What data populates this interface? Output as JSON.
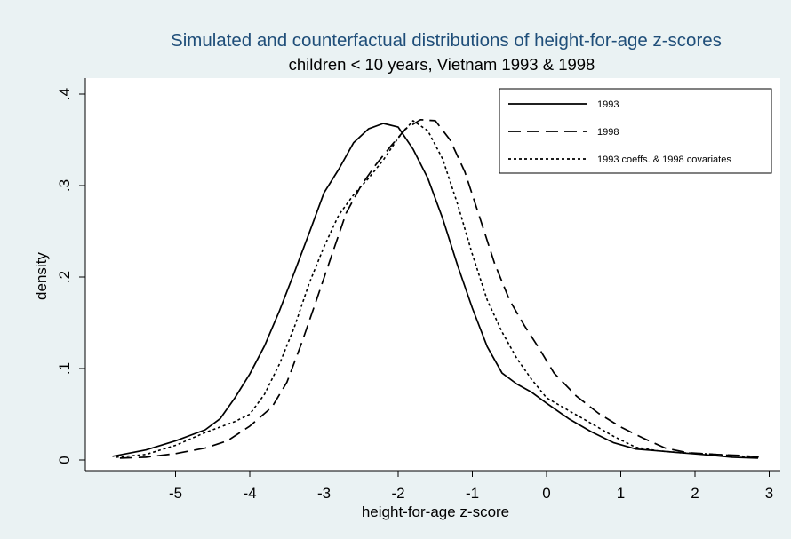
{
  "chart_data": {
    "type": "line",
    "title": "Simulated and counterfactual distributions of height-for-age z-scores",
    "subtitle": "children < 10 years, Vietnam 1993 & 1998",
    "xlabel": "height-for-age z-score",
    "ylabel": "density",
    "xlim": [
      -5.9,
      3.1
    ],
    "ylim": [
      0,
      0.4
    ],
    "xticks": [
      -5,
      -4,
      -3,
      -2,
      -1,
      0,
      1,
      2,
      3
    ],
    "yticks": [
      0,
      0.1,
      0.2,
      0.3,
      0.4
    ],
    "xtick_labels": [
      "-5",
      "-4",
      "-3",
      "-2",
      "-1",
      "0",
      "1",
      "2",
      "3"
    ],
    "ytick_labels": [
      "0",
      ".1",
      ".2",
      ".3",
      ".4"
    ],
    "grid": false,
    "legend_position": "top-right",
    "series": [
      {
        "name": "1993",
        "style": "solid",
        "color": "#000000",
        "points": [
          [
            -5.85,
            0.004
          ],
          [
            -5.4,
            0.011
          ],
          [
            -5.0,
            0.021
          ],
          [
            -4.6,
            0.033
          ],
          [
            -4.4,
            0.045
          ],
          [
            -4.2,
            0.068
          ],
          [
            -4.0,
            0.094
          ],
          [
            -3.8,
            0.125
          ],
          [
            -3.6,
            0.163
          ],
          [
            -3.4,
            0.205
          ],
          [
            -3.2,
            0.248
          ],
          [
            -3.0,
            0.292
          ],
          [
            -2.8,
            0.318
          ],
          [
            -2.6,
            0.347
          ],
          [
            -2.4,
            0.362
          ],
          [
            -2.2,
            0.368
          ],
          [
            -2.0,
            0.364
          ],
          [
            -1.8,
            0.34
          ],
          [
            -1.6,
            0.308
          ],
          [
            -1.4,
            0.264
          ],
          [
            -1.2,
            0.213
          ],
          [
            -1.0,
            0.166
          ],
          [
            -0.8,
            0.124
          ],
          [
            -0.6,
            0.095
          ],
          [
            -0.4,
            0.083
          ],
          [
            -0.2,
            0.074
          ],
          [
            0.0,
            0.062
          ],
          [
            0.3,
            0.045
          ],
          [
            0.6,
            0.031
          ],
          [
            0.9,
            0.019
          ],
          [
            1.2,
            0.012
          ],
          [
            1.5,
            0.01
          ],
          [
            1.8,
            0.008
          ],
          [
            2.1,
            0.006
          ],
          [
            2.5,
            0.003
          ],
          [
            2.85,
            0.002
          ]
        ]
      },
      {
        "name": "1998",
        "style": "dashed",
        "color": "#000000",
        "points": [
          [
            -5.75,
            0.002
          ],
          [
            -5.4,
            0.003
          ],
          [
            -5.0,
            0.007
          ],
          [
            -4.6,
            0.013
          ],
          [
            -4.3,
            0.021
          ],
          [
            -4.0,
            0.037
          ],
          [
            -3.7,
            0.058
          ],
          [
            -3.5,
            0.085
          ],
          [
            -3.3,
            0.128
          ],
          [
            -3.1,
            0.175
          ],
          [
            -2.9,
            0.223
          ],
          [
            -2.7,
            0.27
          ],
          [
            -2.5,
            0.3
          ],
          [
            -2.3,
            0.323
          ],
          [
            -2.1,
            0.343
          ],
          [
            -1.9,
            0.362
          ],
          [
            -1.7,
            0.372
          ],
          [
            -1.5,
            0.371
          ],
          [
            -1.3,
            0.35
          ],
          [
            -1.1,
            0.315
          ],
          [
            -0.9,
            0.265
          ],
          [
            -0.7,
            0.215
          ],
          [
            -0.5,
            0.175
          ],
          [
            -0.3,
            0.147
          ],
          [
            -0.1,
            0.122
          ],
          [
            0.1,
            0.095
          ],
          [
            0.4,
            0.07
          ],
          [
            0.7,
            0.051
          ],
          [
            1.0,
            0.036
          ],
          [
            1.3,
            0.024
          ],
          [
            1.6,
            0.013
          ],
          [
            1.9,
            0.008
          ],
          [
            2.3,
            0.006
          ],
          [
            2.6,
            0.005
          ],
          [
            2.9,
            0.003
          ]
        ]
      },
      {
        "name": "1993 coeffs. & 1998 covariates",
        "style": "dotted",
        "color": "#000000",
        "points": [
          [
            -5.8,
            0.003
          ],
          [
            -5.4,
            0.006
          ],
          [
            -5.0,
            0.016
          ],
          [
            -4.6,
            0.03
          ],
          [
            -4.2,
            0.042
          ],
          [
            -4.0,
            0.05
          ],
          [
            -3.8,
            0.072
          ],
          [
            -3.6,
            0.105
          ],
          [
            -3.4,
            0.145
          ],
          [
            -3.2,
            0.193
          ],
          [
            -3.0,
            0.233
          ],
          [
            -2.8,
            0.268
          ],
          [
            -2.6,
            0.29
          ],
          [
            -2.4,
            0.308
          ],
          [
            -2.2,
            0.328
          ],
          [
            -2.0,
            0.352
          ],
          [
            -1.8,
            0.371
          ],
          [
            -1.6,
            0.36
          ],
          [
            -1.4,
            0.329
          ],
          [
            -1.2,
            0.28
          ],
          [
            -1.0,
            0.225
          ],
          [
            -0.8,
            0.175
          ],
          [
            -0.6,
            0.14
          ],
          [
            -0.4,
            0.111
          ],
          [
            -0.2,
            0.088
          ],
          [
            0.0,
            0.068
          ],
          [
            0.3,
            0.054
          ],
          [
            0.6,
            0.04
          ],
          [
            0.9,
            0.026
          ],
          [
            1.2,
            0.014
          ],
          [
            1.5,
            0.01
          ],
          [
            1.8,
            0.008
          ],
          [
            2.1,
            0.007
          ],
          [
            2.5,
            0.005
          ],
          [
            2.85,
            0.003
          ]
        ]
      }
    ]
  }
}
